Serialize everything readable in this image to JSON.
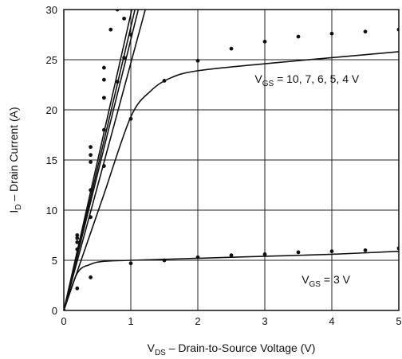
{
  "chart_data": {
    "type": "line",
    "xlabel": {
      "main": "V",
      "sub": "DS",
      "rest": " – Drain-to-Source Voltage (V)"
    },
    "ylabel": {
      "main": "I",
      "sub": "D",
      "rest": " – Drain Current (A)"
    },
    "xlim": [
      0,
      5
    ],
    "ylim": [
      0,
      30
    ],
    "xticks": [
      0,
      1,
      2,
      3,
      4,
      5
    ],
    "yticks": [
      0,
      5,
      10,
      15,
      20,
      25,
      30
    ],
    "grid": true,
    "annotations": [
      {
        "id": "vgs-high",
        "main": "V",
        "sub": "GS",
        "rest": " = 10, 7, 6, 5, 4 V",
        "x": 2.85,
        "y": 22.7
      },
      {
        "id": "vgs-low",
        "main": "V",
        "sub": "GS",
        "rest": " = 3 V",
        "x": 3.55,
        "y": 2.7
      }
    ],
    "series": [
      {
        "label": "10",
        "line": [
          [
            0,
            0
          ],
          [
            0.5,
            14.8
          ],
          [
            1.1,
            32.5
          ]
        ],
        "points": [
          [
            0,
            0
          ],
          [
            0.2,
            7.5
          ],
          [
            0.4,
            16.3
          ],
          [
            0.6,
            24.2
          ],
          [
            0.8,
            31
          ]
        ]
      },
      {
        "label": "7",
        "line": [
          [
            0,
            0
          ],
          [
            0.5,
            14.1
          ],
          [
            1.15,
            32.5
          ]
        ],
        "points": [
          [
            0.2,
            7.2
          ],
          [
            0.4,
            15.5
          ],
          [
            0.6,
            23.0
          ],
          [
            0.8,
            30.0
          ]
        ]
      },
      {
        "label": "6",
        "line": [
          [
            0,
            0
          ],
          [
            0.5,
            13.5
          ],
          [
            1.2,
            32.4
          ]
        ],
        "points": [
          [
            0.2,
            6.8
          ],
          [
            0.4,
            14.8
          ],
          [
            0.6,
            21.2
          ],
          [
            0.7,
            28
          ],
          [
            0.9,
            29.1
          ]
        ]
      },
      {
        "label": "5",
        "line": [
          [
            0,
            0
          ],
          [
            0.5,
            12.3
          ],
          [
            1.2,
            29.6
          ],
          [
            1.3,
            32
          ]
        ],
        "points": [
          [
            0.2,
            6.1
          ],
          [
            0.4,
            12.0
          ],
          [
            0.6,
            18.0
          ],
          [
            0.8,
            22.8
          ],
          [
            0.9,
            25.2
          ],
          [
            1.0,
            27.5
          ]
        ]
      },
      {
        "label": "4",
        "line": [
          [
            0,
            0
          ],
          [
            0.3,
            5.8
          ],
          [
            0.6,
            11.6
          ],
          [
            1.0,
            19.3
          ],
          [
            1.3,
            21.9
          ],
          [
            1.6,
            23.2
          ],
          [
            2.0,
            23.9
          ],
          [
            3.0,
            24.6
          ],
          [
            4.0,
            25.2
          ],
          [
            5.0,
            25.8
          ]
        ],
        "points": [
          [
            0.2,
            2.2
          ],
          [
            0.4,
            9.3
          ],
          [
            0.6,
            14.4
          ],
          [
            1.0,
            19.1
          ],
          [
            1.5,
            22.9
          ],
          [
            2.0,
            24.9
          ],
          [
            2.5,
            26.1
          ],
          [
            3.0,
            26.8
          ],
          [
            3.5,
            27.3
          ],
          [
            4.0,
            27.6
          ],
          [
            4.5,
            27.8
          ],
          [
            5.0,
            28.0
          ]
        ]
      },
      {
        "label": "3",
        "line": [
          [
            0,
            0
          ],
          [
            0.2,
            3.7
          ],
          [
            0.4,
            4.6
          ],
          [
            0.6,
            4.9
          ],
          [
            1.0,
            5.0
          ],
          [
            2.0,
            5.2
          ],
          [
            3.0,
            5.4
          ],
          [
            4.0,
            5.6
          ],
          [
            5.0,
            5.9
          ]
        ],
        "points": [
          [
            0.4,
            3.3
          ],
          [
            1.0,
            4.7
          ],
          [
            1.5,
            5.0
          ],
          [
            2.0,
            5.3
          ],
          [
            2.5,
            5.5
          ],
          [
            3.0,
            5.6
          ],
          [
            3.5,
            5.8
          ],
          [
            4.0,
            5.9
          ],
          [
            4.5,
            6.0
          ],
          [
            5.0,
            6.2
          ]
        ]
      }
    ]
  }
}
